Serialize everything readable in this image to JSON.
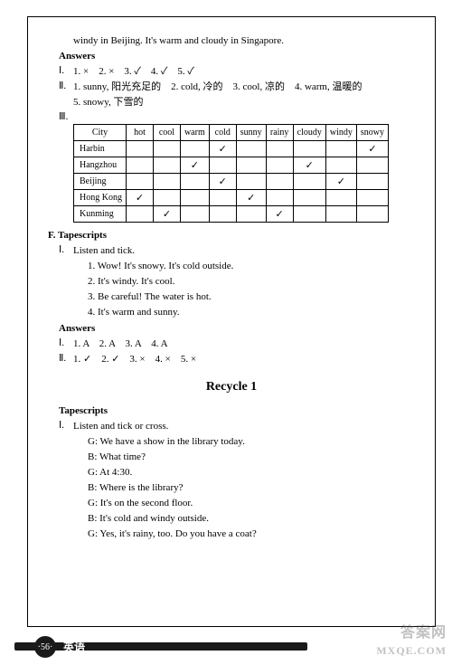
{
  "top": {
    "continuation": "windy in Beijing. It's warm and cloudy in Singapore."
  },
  "answers1": {
    "heading": "Answers",
    "roman1": "Ⅰ.",
    "line1": "1. ×　2. ×　3. ✓　4. ✓　5. ✓",
    "roman2": "Ⅱ.",
    "line2a": "1. sunny, 阳光充足的　2. cold, 冷的　3. cool, 凉的　4. warm, 温暖的",
    "line2b": "5. snowy, 下雪的",
    "roman3": "Ⅲ."
  },
  "table": {
    "headers": [
      "City",
      "hot",
      "cool",
      "warm",
      "cold",
      "sunny",
      "rainy",
      "cloudy",
      "windy",
      "snowy"
    ],
    "rows": [
      {
        "city": "Harbin",
        "cells": [
          "",
          "",
          "",
          "✓",
          "",
          "",
          "",
          "",
          "✓"
        ]
      },
      {
        "city": "Hangzhou",
        "cells": [
          "",
          "",
          "✓",
          "",
          "",
          "",
          "✓",
          "",
          ""
        ]
      },
      {
        "city": "Beijing",
        "cells": [
          "",
          "",
          "",
          "✓",
          "",
          "",
          "",
          "✓",
          ""
        ]
      },
      {
        "city": "Hong Kong",
        "cells": [
          "✓",
          "",
          "",
          "",
          "✓",
          "",
          "",
          "",
          ""
        ]
      },
      {
        "city": "Kunming",
        "cells": [
          "",
          "✓",
          "",
          "",
          "",
          "✓",
          "",
          "",
          ""
        ]
      }
    ]
  },
  "sectionF": {
    "heading": "F. Tapescripts",
    "roman": "Ⅰ.",
    "subhead": "Listen and tick.",
    "items": [
      "1. Wow! It's snowy. It's cold outside.",
      "2. It's windy. It's cool.",
      "3. Be careful! The water is hot.",
      "4. It's warm and sunny."
    ]
  },
  "answers2": {
    "heading": "Answers",
    "roman1": "Ⅰ.",
    "line1": "1. A　2. A　3. A　4. A",
    "roman2": "Ⅱ.",
    "line2": "1. ✓　2. ✓　3. ×　4. ×　5. ×"
  },
  "recycle": {
    "title": "Recycle 1",
    "heading": "Tapescripts",
    "roman": "Ⅰ.",
    "subhead": "Listen and tick or cross.",
    "dialogue": [
      "G: We have a show in the library today.",
      "B: What time?",
      "G: At 4:30.",
      "B: Where is the library?",
      "G: It's on the second floor.",
      "B: It's cold and windy outside.",
      "G: Yes, it's rainy, too. Do you have a coat?"
    ]
  },
  "footer": {
    "page": "·56·",
    "subject": "英语"
  },
  "watermark": {
    "w1": "答案网",
    "w2": "MXQE.COM"
  }
}
